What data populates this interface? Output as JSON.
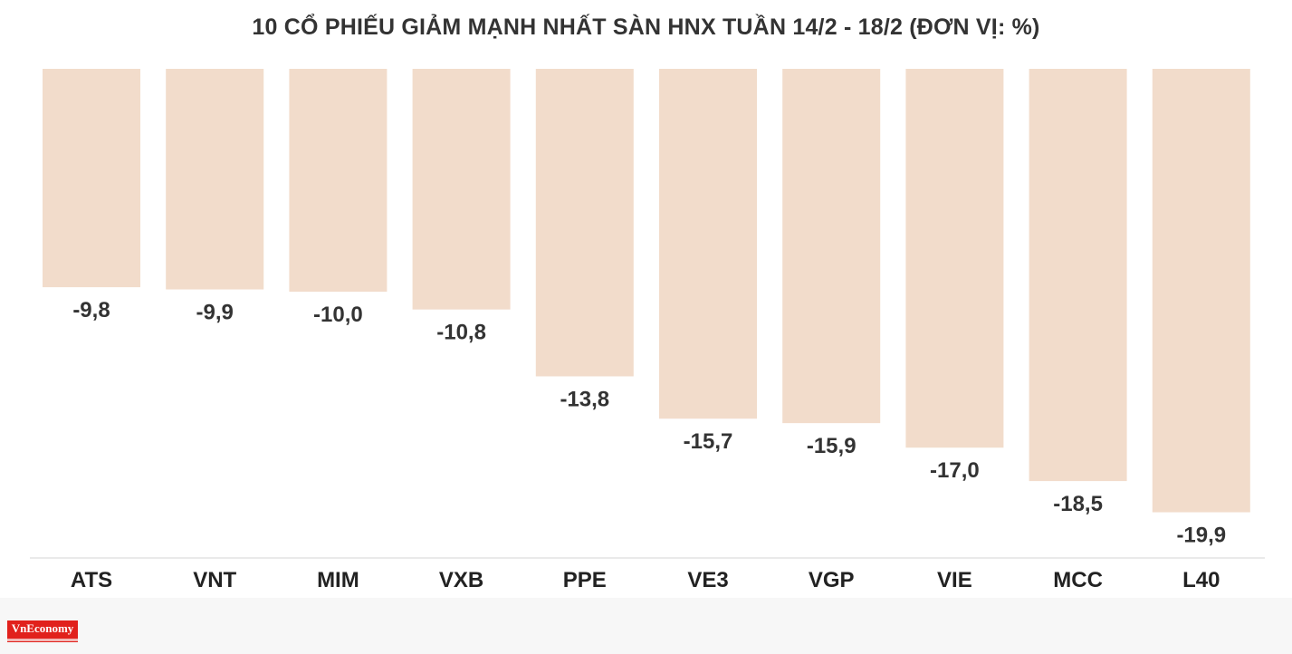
{
  "chart_data": {
    "type": "bar",
    "title": "10 CỔ PHIẾU GIẢM MẠNH NHẤT SÀN HNX TUẦN 14/2 - 18/2 (ĐƠN VỊ: %)",
    "categories": [
      "ATS",
      "VNT",
      "MIM",
      "VXB",
      "PPE",
      "VE3",
      "VGP",
      "VIE",
      "MCC",
      "L40"
    ],
    "values": [
      -9.8,
      -9.9,
      -10.0,
      -10.8,
      -13.8,
      -15.7,
      -15.9,
      -17.0,
      -18.5,
      -19.9
    ],
    "value_labels": [
      "-9,8",
      "-9,9",
      "-10,0",
      "-10,8",
      "-13,8",
      "-15,7",
      "-15,9",
      "-17,0",
      "-18,5",
      "-19,9"
    ],
    "ylim": [
      -22.3,
      0
    ],
    "grid": false,
    "legend": "none",
    "colors": {
      "bar": "#f2dccb",
      "axis": "#e3e3e3",
      "label": "#333333"
    }
  },
  "logo": {
    "text": "VnEconomy",
    "color": "#e1211c"
  }
}
